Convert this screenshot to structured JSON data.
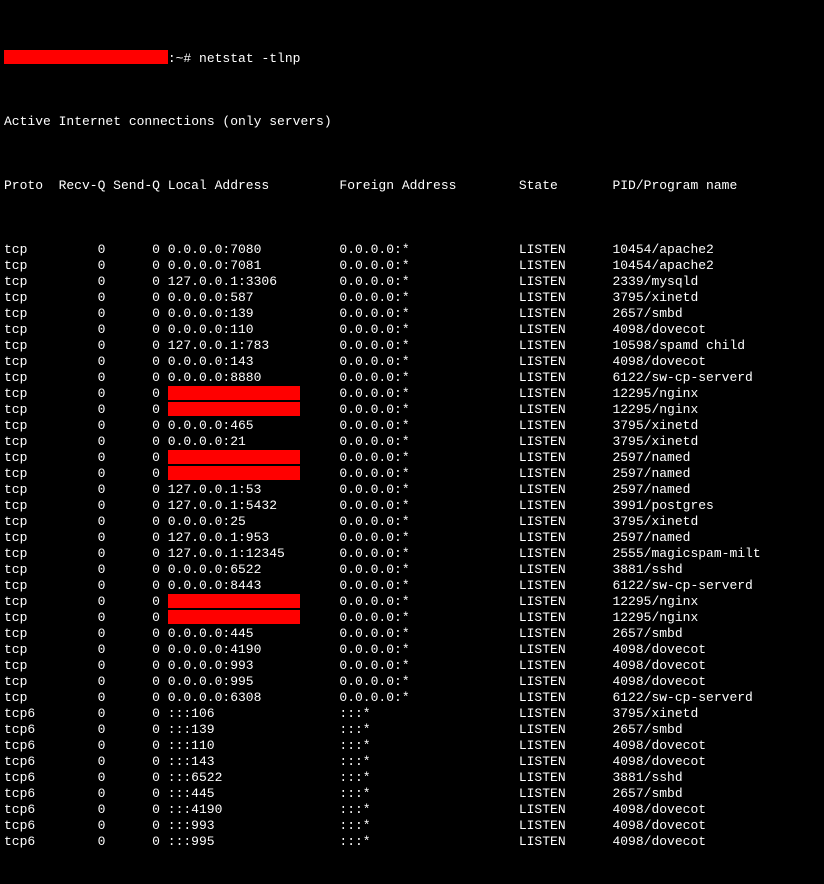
{
  "colors": {
    "background": "#000000",
    "text": "#ffffff",
    "redaction": "#ff0000"
  },
  "prompt": {
    "hostname_redacted": true,
    "hostname_redaction_width_ch": 21,
    "suffix": ":~# ",
    "command": "netstat -tlnp"
  },
  "header_line": "Active Internet connections (only servers)",
  "columns": {
    "proto": "Proto",
    "recvq": "Recv-Q",
    "sendq": "Send-Q",
    "local": "Local Address",
    "foreign": "Foreign Address",
    "state": "State",
    "pid": "PID/Program name"
  },
  "rows": [
    {
      "proto": "tcp",
      "recvq": "0",
      "sendq": "0",
      "local": "0.0.0.0:7080",
      "foreign": "0.0.0.0:*",
      "state": "LISTEN",
      "pid": "10454/apache2"
    },
    {
      "proto": "tcp",
      "recvq": "0",
      "sendq": "0",
      "local": "0.0.0.0:7081",
      "foreign": "0.0.0.0:*",
      "state": "LISTEN",
      "pid": "10454/apache2"
    },
    {
      "proto": "tcp",
      "recvq": "0",
      "sendq": "0",
      "local": "127.0.0.1:3306",
      "foreign": "0.0.0.0:*",
      "state": "LISTEN",
      "pid": "2339/mysqld"
    },
    {
      "proto": "tcp",
      "recvq": "0",
      "sendq": "0",
      "local": "0.0.0.0:587",
      "foreign": "0.0.0.0:*",
      "state": "LISTEN",
      "pid": "3795/xinetd"
    },
    {
      "proto": "tcp",
      "recvq": "0",
      "sendq": "0",
      "local": "0.0.0.0:139",
      "foreign": "0.0.0.0:*",
      "state": "LISTEN",
      "pid": "2657/smbd"
    },
    {
      "proto": "tcp",
      "recvq": "0",
      "sendq": "0",
      "local": "0.0.0.0:110",
      "foreign": "0.0.0.0:*",
      "state": "LISTEN",
      "pid": "4098/dovecot"
    },
    {
      "proto": "tcp",
      "recvq": "0",
      "sendq": "0",
      "local": "127.0.0.1:783",
      "foreign": "0.0.0.0:*",
      "state": "LISTEN",
      "pid": "10598/spamd child"
    },
    {
      "proto": "tcp",
      "recvq": "0",
      "sendq": "0",
      "local": "0.0.0.0:143",
      "foreign": "0.0.0.0:*",
      "state": "LISTEN",
      "pid": "4098/dovecot"
    },
    {
      "proto": "tcp",
      "recvq": "0",
      "sendq": "0",
      "local": "0.0.0.0:8880",
      "foreign": "0.0.0.0:*",
      "state": "LISTEN",
      "pid": "6122/sw-cp-serverd"
    },
    {
      "proto": "tcp",
      "recvq": "0",
      "sendq": "0",
      "local_redacted": true,
      "redaction_width_ch": 17,
      "foreign": "0.0.0.0:*",
      "state": "LISTEN",
      "pid": "12295/nginx"
    },
    {
      "proto": "tcp",
      "recvq": "0",
      "sendq": "0",
      "local_redacted": true,
      "redaction_width_ch": 17,
      "foreign": "0.0.0.0:*",
      "state": "LISTEN",
      "pid": "12295/nginx"
    },
    {
      "proto": "tcp",
      "recvq": "0",
      "sendq": "0",
      "local": "0.0.0.0:465",
      "foreign": "0.0.0.0:*",
      "state": "LISTEN",
      "pid": "3795/xinetd"
    },
    {
      "proto": "tcp",
      "recvq": "0",
      "sendq": "0",
      "local": "0.0.0.0:21",
      "foreign": "0.0.0.0:*",
      "state": "LISTEN",
      "pid": "3795/xinetd"
    },
    {
      "proto": "tcp",
      "recvq": "0",
      "sendq": "0",
      "local_redacted": true,
      "redaction_width_ch": 17,
      "foreign": "0.0.0.0:*",
      "state": "LISTEN",
      "pid": "2597/named"
    },
    {
      "proto": "tcp",
      "recvq": "0",
      "sendq": "0",
      "local_redacted": true,
      "redaction_width_ch": 17,
      "foreign": "0.0.0.0:*",
      "state": "LISTEN",
      "pid": "2597/named"
    },
    {
      "proto": "tcp",
      "recvq": "0",
      "sendq": "0",
      "local": "127.0.0.1:53",
      "foreign": "0.0.0.0:*",
      "state": "LISTEN",
      "pid": "2597/named"
    },
    {
      "proto": "tcp",
      "recvq": "0",
      "sendq": "0",
      "local": "127.0.0.1:5432",
      "foreign": "0.0.0.0:*",
      "state": "LISTEN",
      "pid": "3991/postgres"
    },
    {
      "proto": "tcp",
      "recvq": "0",
      "sendq": "0",
      "local": "0.0.0.0:25",
      "foreign": "0.0.0.0:*",
      "state": "LISTEN",
      "pid": "3795/xinetd"
    },
    {
      "proto": "tcp",
      "recvq": "0",
      "sendq": "0",
      "local": "127.0.0.1:953",
      "foreign": "0.0.0.0:*",
      "state": "LISTEN",
      "pid": "2597/named"
    },
    {
      "proto": "tcp",
      "recvq": "0",
      "sendq": "0",
      "local": "127.0.0.1:12345",
      "foreign": "0.0.0.0:*",
      "state": "LISTEN",
      "pid": "2555/magicspam-milt"
    },
    {
      "proto": "tcp",
      "recvq": "0",
      "sendq": "0",
      "local": "0.0.0.0:6522",
      "foreign": "0.0.0.0:*",
      "state": "LISTEN",
      "pid": "3881/sshd"
    },
    {
      "proto": "tcp",
      "recvq": "0",
      "sendq": "0",
      "local": "0.0.0.0:8443",
      "foreign": "0.0.0.0:*",
      "state": "LISTEN",
      "pid": "6122/sw-cp-serverd"
    },
    {
      "proto": "tcp",
      "recvq": "0",
      "sendq": "0",
      "local_redacted": true,
      "redaction_width_ch": 17,
      "foreign": "0.0.0.0:*",
      "state": "LISTEN",
      "pid": "12295/nginx"
    },
    {
      "proto": "tcp",
      "recvq": "0",
      "sendq": "0",
      "local_redacted": true,
      "redaction_width_ch": 17,
      "foreign": "0.0.0.0:*",
      "state": "LISTEN",
      "pid": "12295/nginx"
    },
    {
      "proto": "tcp",
      "recvq": "0",
      "sendq": "0",
      "local": "0.0.0.0:445",
      "foreign": "0.0.0.0:*",
      "state": "LISTEN",
      "pid": "2657/smbd"
    },
    {
      "proto": "tcp",
      "recvq": "0",
      "sendq": "0",
      "local": "0.0.0.0:4190",
      "foreign": "0.0.0.0:*",
      "state": "LISTEN",
      "pid": "4098/dovecot"
    },
    {
      "proto": "tcp",
      "recvq": "0",
      "sendq": "0",
      "local": "0.0.0.0:993",
      "foreign": "0.0.0.0:*",
      "state": "LISTEN",
      "pid": "4098/dovecot"
    },
    {
      "proto": "tcp",
      "recvq": "0",
      "sendq": "0",
      "local": "0.0.0.0:995",
      "foreign": "0.0.0.0:*",
      "state": "LISTEN",
      "pid": "4098/dovecot"
    },
    {
      "proto": "tcp",
      "recvq": "0",
      "sendq": "0",
      "local": "0.0.0.0:6308",
      "foreign": "0.0.0.0:*",
      "state": "LISTEN",
      "pid": "6122/sw-cp-serverd"
    },
    {
      "proto": "tcp6",
      "recvq": "0",
      "sendq": "0",
      "local": ":::106",
      "foreign": ":::*",
      "state": "LISTEN",
      "pid": "3795/xinetd"
    },
    {
      "proto": "tcp6",
      "recvq": "0",
      "sendq": "0",
      "local": ":::139",
      "foreign": ":::*",
      "state": "LISTEN",
      "pid": "2657/smbd"
    },
    {
      "proto": "tcp6",
      "recvq": "0",
      "sendq": "0",
      "local": ":::110",
      "foreign": ":::*",
      "state": "LISTEN",
      "pid": "4098/dovecot"
    },
    {
      "proto": "tcp6",
      "recvq": "0",
      "sendq": "0",
      "local": ":::143",
      "foreign": ":::*",
      "state": "LISTEN",
      "pid": "4098/dovecot"
    },
    {
      "proto": "tcp6",
      "recvq": "0",
      "sendq": "0",
      "local": ":::6522",
      "foreign": ":::*",
      "state": "LISTEN",
      "pid": "3881/sshd"
    },
    {
      "proto": "tcp6",
      "recvq": "0",
      "sendq": "0",
      "local": ":::445",
      "foreign": ":::*",
      "state": "LISTEN",
      "pid": "2657/smbd"
    },
    {
      "proto": "tcp6",
      "recvq": "0",
      "sendq": "0",
      "local": ":::4190",
      "foreign": ":::*",
      "state": "LISTEN",
      "pid": "4098/dovecot"
    },
    {
      "proto": "tcp6",
      "recvq": "0",
      "sendq": "0",
      "local": ":::993",
      "foreign": ":::*",
      "state": "LISTEN",
      "pid": "4098/dovecot"
    },
    {
      "proto": "tcp6",
      "recvq": "0",
      "sendq": "0",
      "local": ":::995",
      "foreign": ":::*",
      "state": "LISTEN",
      "pid": "4098/dovecot"
    }
  ]
}
